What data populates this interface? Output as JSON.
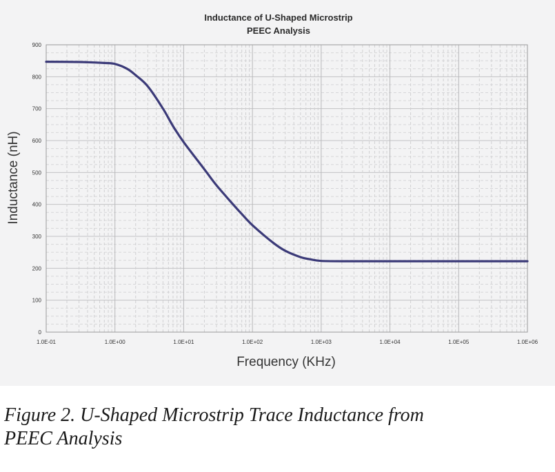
{
  "chart_data": {
    "type": "line",
    "title_lines": [
      "Inductance of U-Shaped Microstrip",
      "PEEC Analysis"
    ],
    "xlabel": "Frequency (KHz)",
    "ylabel": "Inductance (nH)",
    "x_scale": "log",
    "xlim": [
      0.1,
      1000000
    ],
    "ylim": [
      0,
      900
    ],
    "x_ticks": [
      0.1,
      1,
      10,
      100,
      1000,
      10000,
      100000,
      1000000
    ],
    "x_tick_labels": [
      "1.0E-01",
      "1.0E+00",
      "1.0E+01",
      "1.0E+02",
      "1.0E+03",
      "1.0E+04",
      "1.0E+05",
      "1.0E+06"
    ],
    "y_ticks": [
      0,
      100,
      200,
      300,
      400,
      500,
      600,
      700,
      800,
      900
    ],
    "y_tick_labels": [
      "0",
      "100",
      "200",
      "300",
      "400",
      "500",
      "600",
      "700",
      "800",
      "900"
    ],
    "grid": true,
    "line_color": "#3b3a78",
    "series": [
      {
        "x": [
          0.1,
          0.3,
          0.7,
          1,
          1.5,
          2,
          3,
          5,
          7,
          10,
          20,
          30,
          50,
          70,
          100,
          200,
          300,
          500,
          700,
          1000,
          2000,
          5000,
          10000,
          100000,
          1000000
        ],
        "y": [
          847,
          846,
          843,
          840,
          825,
          805,
          770,
          700,
          645,
          595,
          510,
          460,
          405,
          370,
          335,
          280,
          255,
          235,
          228,
          223,
          222,
          222,
          222,
          222,
          222
        ]
      }
    ]
  },
  "caption": {
    "line1": "Figure 2.  U-Shaped Microstrip Trace Inductance from",
    "line2": "PEEC Analysis"
  }
}
